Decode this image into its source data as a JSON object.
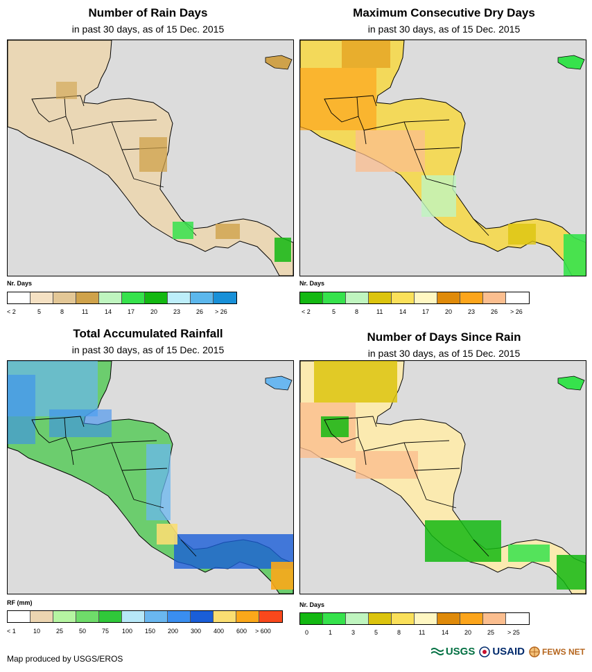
{
  "panels": [
    {
      "title": "Number of Rain Days",
      "subtitle": "in past 30 days, as of 15 Dec. 2015",
      "legend_title": "Nr. Days",
      "legend_colors": [
        "#ffffff",
        "#f5e1c3",
        "#e3c796",
        "#cfa24b",
        "#bff5bf",
        "#36e24c",
        "#13b812",
        "#bdeefa",
        "#5cb7ec",
        "#1890d8"
      ],
      "legend_labels": [
        "< 2",
        "5",
        "8",
        "11",
        "14",
        "17",
        "20",
        "23",
        "26",
        "> 26"
      ],
      "land_color": "#ead7b5"
    },
    {
      "title": "Maximum Consecutive Dry Days",
      "subtitle": "in past 30 days, as of 15 Dec. 2015",
      "legend_title": "Nr. Days",
      "legend_colors": [
        "#13b812",
        "#36e24c",
        "#bff5bf",
        "#dcc40e",
        "#fae05a",
        "#fff7c2",
        "#df8a0a",
        "#fca51c",
        "#fbbe8f",
        "#ffffff"
      ],
      "legend_labels": [
        "< 2",
        "5",
        "8",
        "11",
        "14",
        "17",
        "20",
        "23",
        "26",
        "> 26"
      ],
      "land_color": "#f3d95a"
    },
    {
      "title": "Total Accumulated Rainfall",
      "subtitle": "in past 30 days, as of 15 Dec. 2015",
      "legend_title": "RF (mm)",
      "legend_colors": [
        "#ffffff",
        "#ecd5b1",
        "#b6f5a2",
        "#6fdc6a",
        "#30c83a",
        "#b7e8f8",
        "#6ab7f0",
        "#3a8ef0",
        "#1a5ed8",
        "#fade72",
        "#fba81a",
        "#f9481c"
      ],
      "legend_labels": [
        "< 1",
        "10",
        "25",
        "50",
        "75",
        "100",
        "150",
        "200",
        "300",
        "400",
        "600",
        "> 600"
      ],
      "land_color": "#6ccd6e"
    },
    {
      "title": "Number of Days Since Rain",
      "subtitle": "in past 30 days, as of 15 Dec. 2015",
      "legend_title": "Nr. Days",
      "legend_colors": [
        "#13b812",
        "#36e24c",
        "#bff5bf",
        "#dcc40e",
        "#fae05a",
        "#fff7c2",
        "#df8a0a",
        "#fca51c",
        "#fbbe8f",
        "#ffffff"
      ],
      "legend_labels": [
        "0",
        "1",
        "3",
        "5",
        "8",
        "11",
        "14",
        "20",
        "25",
        "> 25"
      ],
      "land_color": "#fbeab0"
    }
  ],
  "footer": "Map produced by USGS/EROS",
  "logos": {
    "usgs": "USGS",
    "usaid": "USAID",
    "fewsnet": "FEWS NET"
  }
}
